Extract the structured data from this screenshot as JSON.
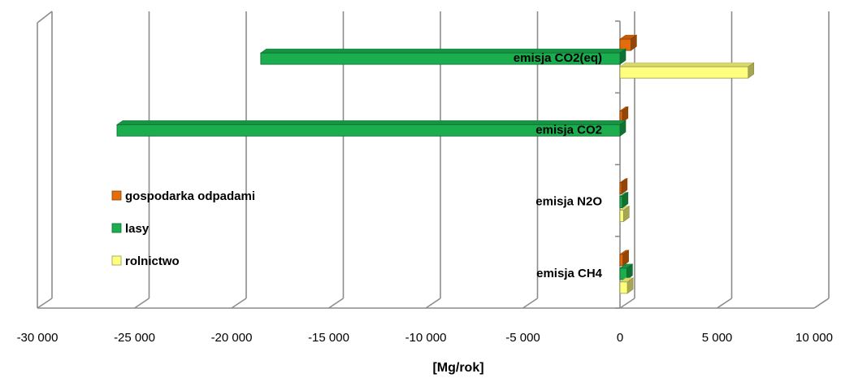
{
  "chart_data": {
    "type": "bar",
    "orientation": "horizontal",
    "categories": [
      "emisja CO2(eq)",
      "emisja CO2",
      "emisja N2O",
      "emisja CH4"
    ],
    "series": [
      {
        "name": "gospodarka odpadami",
        "color": "#E46C0A",
        "values": [
          560,
          120,
          80,
          150
        ]
      },
      {
        "name": "lasy",
        "color": "#1AAE4F",
        "values": [
          -18500,
          -25900,
          120,
          350
        ]
      },
      {
        "name": "rolnictwo",
        "color": "#FFFF7F",
        "values": [
          6600,
          0,
          180,
          380
        ]
      }
    ],
    "xlabel": "[Mg/rok]",
    "ylabel": "",
    "xlim": [
      -30000,
      10000
    ],
    "xticks": [
      -30000,
      -25000,
      -20000,
      -15000,
      -10000,
      -5000,
      0,
      5000,
      10000
    ],
    "xtick_labels": [
      "-30 000",
      "-25 000",
      "-20 000",
      "-15 000",
      "-10 000",
      "-5 000",
      "0",
      "5 000",
      "10 000"
    ],
    "grid": true,
    "legend_position": "left"
  }
}
